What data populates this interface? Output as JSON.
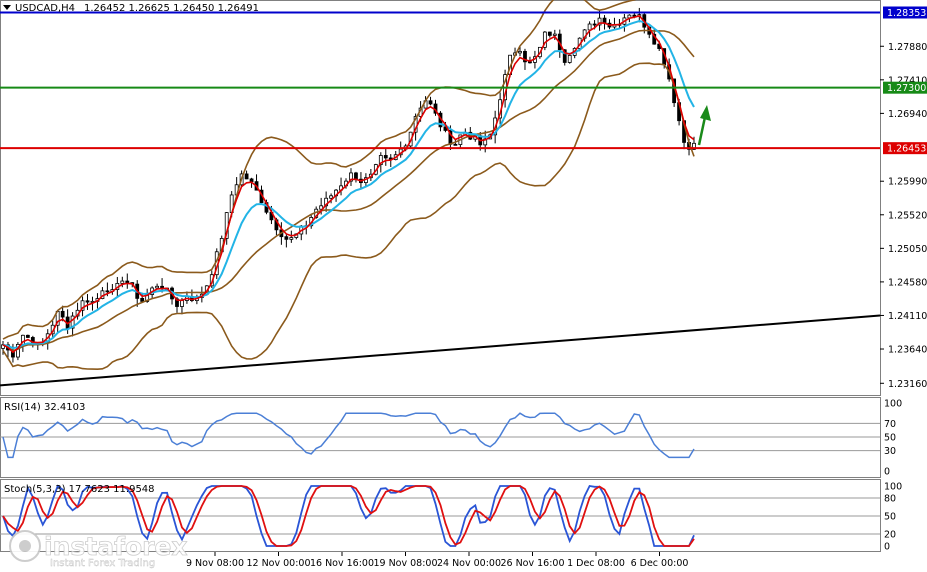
{
  "header": {
    "symbol_label": "USDCAD,H4",
    "ohlc": "1.26452 1.26625 1.26450 1.26491"
  },
  "chart_data": {
    "type": "candlestick",
    "price_axis": {
      "ticks": [
        "1.28353",
        "1.27880",
        "1.27410",
        "1.27300",
        "1.26940",
        "1.26453",
        "1.25990",
        "1.25520",
        "1.25050",
        "1.24580",
        "1.24110",
        "1.23640",
        "1.23160"
      ],
      "range": [
        1.2301,
        1.285
      ]
    },
    "levels": [
      {
        "label": "1.28353",
        "value": 1.28353,
        "color": "#0000cc"
      },
      {
        "label": "1.27300",
        "value": 1.273,
        "color": "#168a16"
      },
      {
        "label": "1.26453",
        "value": 1.26453,
        "color": "#dd0000"
      }
    ],
    "trendline": {
      "from": [
        0,
        1.2313
      ],
      "to": [
        140,
        1.2411
      ],
      "color": "#000000"
    },
    "time_axis": [
      "9 Nov 08:00",
      "12 Nov 00:00",
      "16 Nov 16:00",
      "19 Nov 08:00",
      "24 Nov 00:00",
      "26 Nov 16:00",
      "1 Dec 08:00",
      "6 Dec 00:00"
    ],
    "price_path": [
      1.237,
      1.2355,
      1.2385,
      1.2378,
      1.2365,
      1.239,
      1.2415,
      1.2398,
      1.242,
      1.2435,
      1.2428,
      1.2455,
      1.244,
      1.2465,
      1.245,
      1.243,
      1.2445,
      1.2458,
      1.244,
      1.2425,
      1.244,
      1.2432,
      1.245,
      1.2485,
      1.2535,
      1.259,
      1.261,
      1.2595,
      1.2575,
      1.2548,
      1.253,
      1.2515,
      1.2525,
      1.254,
      1.256,
      1.257,
      1.2585,
      1.26,
      1.261,
      1.2598,
      1.2605,
      1.263,
      1.2625,
      1.264,
      1.266,
      1.27,
      1.2715,
      1.269,
      1.2665,
      1.265,
      1.267,
      1.266,
      1.2648,
      1.2665,
      1.272,
      1.277,
      1.279,
      1.276,
      1.2775,
      1.281,
      1.28,
      1.277,
      1.279,
      1.2805,
      1.282,
      1.283,
      1.2815,
      1.2825,
      1.2835,
      1.283,
      1.2812,
      1.279,
      1.276,
      1.2705,
      1.265,
      1.2649
    ],
    "rsi": {
      "label": "RSI(14) 32.4103",
      "levels": [
        100,
        70,
        50,
        30,
        0
      ],
      "last": 32.4103
    },
    "stoch": {
      "label": "Stoch(5,3,3) 17.7623 11.9548",
      "levels": [
        100,
        80,
        50,
        20,
        0
      ],
      "k_last": 17.7623,
      "d_last": 11.9548
    }
  },
  "colors": {
    "candle": "#000000",
    "bollinger": "#8b5a1c",
    "ema_fast": "#dd0000",
    "ema_slow": "#22b4e6",
    "rsi_line": "#4b7fd6",
    "stoch_k": "#2a55d6",
    "stoch_d": "#e01010",
    "arrow": "#1a8a1a"
  },
  "watermark": {
    "brand": "instaforex",
    "tagline": "Instant Forex Trading"
  }
}
